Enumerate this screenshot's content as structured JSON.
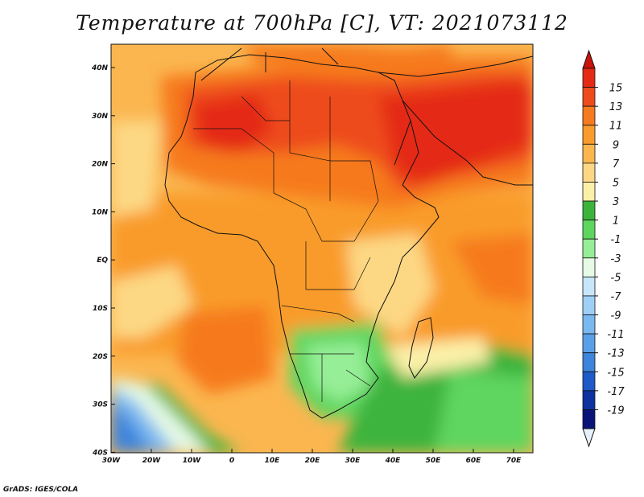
{
  "title": "Temperature at 700hPa [C], VT: 2021073112",
  "credit": "GrADS: IGES/COLA",
  "map": {
    "lon_range": [
      -30,
      75
    ],
    "lat_range": [
      -40,
      45
    ],
    "lon_ticks": [
      "30W",
      "20W",
      "10W",
      "0",
      "10E",
      "20E",
      "30E",
      "40E",
      "50E",
      "60E",
      "70E"
    ],
    "lat_ticks": [
      "40N",
      "30N",
      "20N",
      "10N",
      "EQ",
      "10S",
      "20S",
      "30S",
      "40S"
    ]
  },
  "colorbar": {
    "labels": [
      "15",
      "13",
      "11",
      "9",
      "7",
      "5",
      "3",
      "1",
      "-1",
      "-3",
      "-5",
      "-7",
      "-9",
      "-11",
      "-13",
      "-15",
      "-17",
      "-19"
    ],
    "colors": [
      "#e42a14",
      "#ee4b1c",
      "#f67a1e",
      "#f99b2c",
      "#fbb650",
      "#fdd884",
      "#fbf0a8",
      "#3cb43c",
      "#5ed65e",
      "#96ee96",
      "#e6fae6",
      "#c8e6fa",
      "#9ed0f6",
      "#7ab8f0",
      "#5aa0e8",
      "#3c84dc",
      "#1e5ac8",
      "#0e32a0",
      "#0a1478"
    ],
    "top_arrow_color": "#c8140a",
    "bottom_arrow_color": "#e6f0fa"
  }
}
